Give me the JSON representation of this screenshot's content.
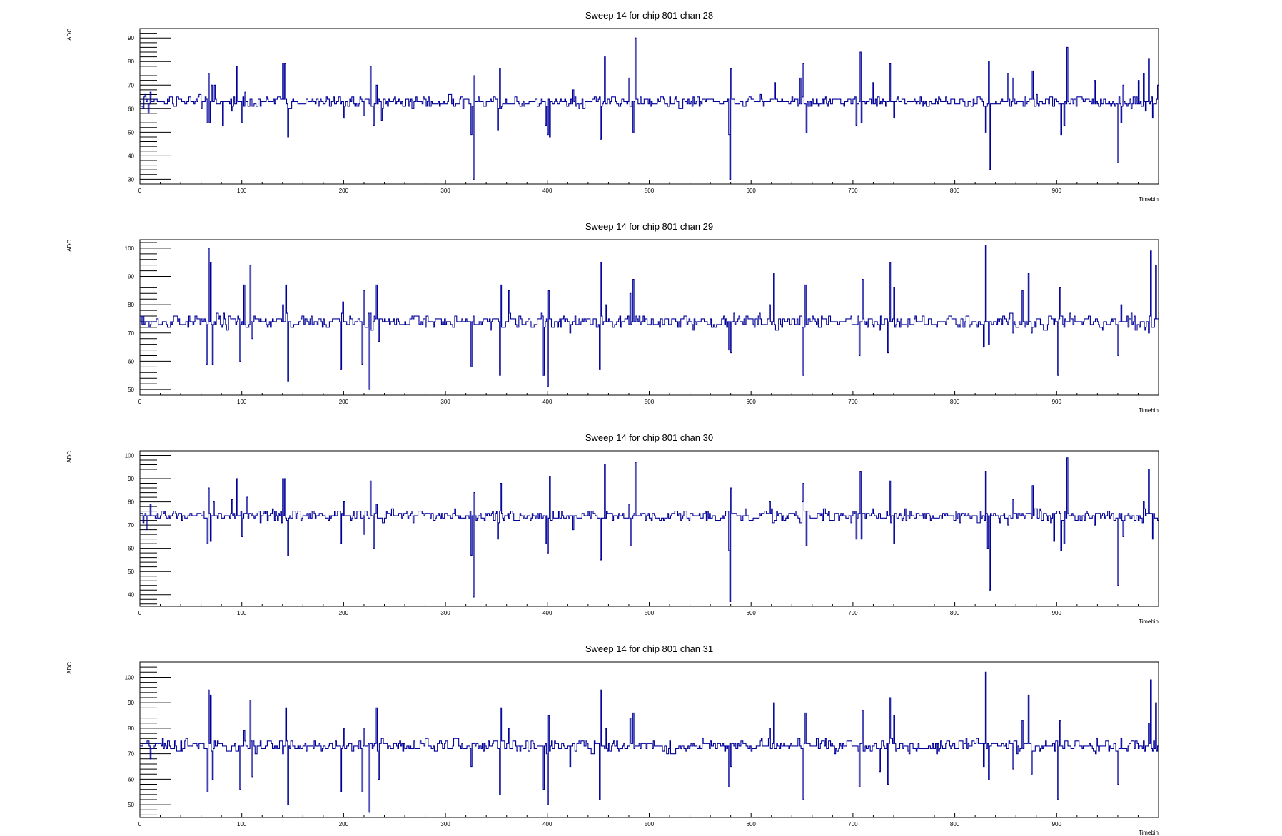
{
  "chart_data": [
    {
      "type": "line",
      "title": "Sweep 14 for chip 801 chan 28",
      "xlabel": "Timebin",
      "ylabel": "ADC",
      "xlim": [
        0,
        1000
      ],
      "ylim": [
        28,
        94
      ],
      "xticks": [
        0,
        100,
        200,
        300,
        400,
        500,
        600,
        700,
        800,
        900
      ],
      "yticks": [
        30,
        40,
        50,
        60,
        70,
        80,
        90
      ],
      "color": "#000099",
      "baseline": 63,
      "noise": 1.5,
      "spikes": [
        [
          3,
          60
        ],
        [
          5,
          66
        ],
        [
          8,
          58
        ],
        [
          10,
          67
        ],
        [
          66,
          54
        ],
        [
          67,
          75
        ],
        [
          68,
          54
        ],
        [
          70,
          70
        ],
        [
          73,
          70
        ],
        [
          81,
          53
        ],
        [
          90,
          59
        ],
        [
          95,
          78
        ],
        [
          100,
          54
        ],
        [
          103,
          67
        ],
        [
          140,
          79
        ],
        [
          142,
          79
        ],
        [
          145,
          48
        ],
        [
          197,
          62
        ],
        [
          200,
          56
        ],
        [
          220,
          57
        ],
        [
          226,
          78
        ],
        [
          229,
          53
        ],
        [
          232,
          70
        ],
        [
          237,
          55
        ],
        [
          325,
          49
        ],
        [
          327,
          30
        ],
        [
          328,
          74
        ],
        [
          351,
          51
        ],
        [
          353,
          77
        ],
        [
          398,
          53
        ],
        [
          400,
          49
        ],
        [
          402,
          48
        ],
        [
          425,
          68
        ],
        [
          452,
          47
        ],
        [
          456,
          82
        ],
        [
          480,
          73
        ],
        [
          484,
          50
        ],
        [
          486,
          90
        ],
        [
          578,
          49
        ],
        [
          579,
          30
        ],
        [
          580,
          77
        ],
        [
          623,
          71
        ],
        [
          648,
          73
        ],
        [
          651,
          79
        ],
        [
          654,
          50
        ],
        [
          703,
          53
        ],
        [
          707,
          84
        ],
        [
          708,
          54
        ],
        [
          719,
          71
        ],
        [
          736,
          79
        ],
        [
          740,
          56
        ],
        [
          830,
          50
        ],
        [
          833,
          80
        ],
        [
          834,
          34
        ],
        [
          852,
          75
        ],
        [
          857,
          73
        ],
        [
          876,
          76
        ],
        [
          897,
          61
        ],
        [
          904,
          49
        ],
        [
          907,
          53
        ],
        [
          910,
          86
        ],
        [
          937,
          72
        ],
        [
          960,
          37
        ],
        [
          963,
          54
        ],
        [
          965,
          70
        ],
        [
          980,
          72
        ],
        [
          985,
          75
        ],
        [
          987,
          59
        ],
        [
          990,
          81
        ],
        [
          994,
          56
        ],
        [
          999,
          70
        ]
      ]
    },
    {
      "type": "line",
      "title": "Sweep 14 for chip 801 chan 29",
      "xlabel": "Timebin",
      "ylabel": "ADC",
      "xlim": [
        0,
        1000
      ],
      "ylim": [
        48,
        103
      ],
      "xticks": [
        0,
        100,
        200,
        300,
        400,
        500,
        600,
        700,
        800,
        900
      ],
      "yticks": [
        50,
        60,
        70,
        80,
        90,
        100
      ],
      "color": "#000099",
      "baseline": 74,
      "noise": 1.5,
      "spikes": [
        [
          65,
          59
        ],
        [
          67,
          100
        ],
        [
          69,
          95
        ],
        [
          71,
          59
        ],
        [
          98,
          60
        ],
        [
          102,
          87
        ],
        [
          108,
          94
        ],
        [
          110,
          68
        ],
        [
          140,
          80
        ],
        [
          143,
          87
        ],
        [
          145,
          53
        ],
        [
          197,
          57
        ],
        [
          199,
          81
        ],
        [
          218,
          59
        ],
        [
          220,
          85
        ],
        [
          225,
          50
        ],
        [
          232,
          87
        ],
        [
          234,
          67
        ],
        [
          325,
          58
        ],
        [
          353,
          55
        ],
        [
          354,
          87
        ],
        [
          362,
          85
        ],
        [
          396,
          55
        ],
        [
          400,
          51
        ],
        [
          401,
          85
        ],
        [
          422,
          70
        ],
        [
          451,
          57
        ],
        [
          452,
          95
        ],
        [
          457,
          80
        ],
        [
          481,
          84
        ],
        [
          484,
          89
        ],
        [
          578,
          64
        ],
        [
          580,
          63
        ],
        [
          618,
          80
        ],
        [
          622,
          91
        ],
        [
          651,
          55
        ],
        [
          653,
          87
        ],
        [
          706,
          62
        ],
        [
          709,
          89
        ],
        [
          726,
          71
        ],
        [
          734,
          63
        ],
        [
          736,
          95
        ],
        [
          740,
          86
        ],
        [
          828,
          65
        ],
        [
          830,
          101
        ],
        [
          833,
          66
        ],
        [
          857,
          70
        ],
        [
          866,
          85
        ],
        [
          872,
          91
        ],
        [
          875,
          70
        ],
        [
          901,
          55
        ],
        [
          903,
          86
        ],
        [
          960,
          62
        ],
        [
          963,
          80
        ],
        [
          990,
          70
        ],
        [
          992,
          99
        ],
        [
          997,
          94
        ]
      ]
    },
    {
      "type": "line",
      "title": "Sweep 14 for chip 801 chan 30",
      "xlabel": "Timebin",
      "ylabel": "ADC",
      "xlim": [
        0,
        1000
      ],
      "ylim": [
        35,
        102
      ],
      "xticks": [
        0,
        100,
        200,
        300,
        400,
        500,
        600,
        700,
        800,
        900
      ],
      "yticks": [
        40,
        50,
        60,
        70,
        80,
        90,
        100
      ],
      "color": "#000099",
      "baseline": 74,
      "noise": 1.5,
      "spikes": [
        [
          3,
          71
        ],
        [
          6,
          68
        ],
        [
          10,
          79
        ],
        [
          66,
          62
        ],
        [
          67,
          86
        ],
        [
          69,
          63
        ],
        [
          72,
          80
        ],
        [
          90,
          81
        ],
        [
          95,
          90
        ],
        [
          100,
          65
        ],
        [
          105,
          82
        ],
        [
          140,
          90
        ],
        [
          142,
          90
        ],
        [
          145,
          57
        ],
        [
          197,
          62
        ],
        [
          200,
          80
        ],
        [
          220,
          66
        ],
        [
          226,
          89
        ],
        [
          229,
          60
        ],
        [
          232,
          79
        ],
        [
          325,
          57
        ],
        [
          327,
          39
        ],
        [
          328,
          84
        ],
        [
          351,
          64
        ],
        [
          354,
          88
        ],
        [
          398,
          62
        ],
        [
          400,
          58
        ],
        [
          402,
          91
        ],
        [
          425,
          68
        ],
        [
          452,
          55
        ],
        [
          456,
          96
        ],
        [
          480,
          79
        ],
        [
          482,
          61
        ],
        [
          486,
          97
        ],
        [
          578,
          59
        ],
        [
          579,
          37
        ],
        [
          580,
          86
        ],
        [
          618,
          80
        ],
        [
          650,
          80
        ],
        [
          651,
          88
        ],
        [
          654,
          61
        ],
        [
          703,
          64
        ],
        [
          707,
          93
        ],
        [
          708,
          64
        ],
        [
          719,
          77
        ],
        [
          736,
          89
        ],
        [
          740,
          62
        ],
        [
          830,
          93
        ],
        [
          832,
          60
        ],
        [
          834,
          42
        ],
        [
          852,
          70
        ],
        [
          857,
          81
        ],
        [
          876,
          87
        ],
        [
          897,
          63
        ],
        [
          904,
          59
        ],
        [
          907,
          62
        ],
        [
          910,
          99
        ],
        [
          937,
          70
        ],
        [
          960,
          44
        ],
        [
          963,
          75
        ],
        [
          965,
          65
        ],
        [
          985,
          80
        ],
        [
          990,
          94
        ],
        [
          994,
          64
        ],
        [
          999,
          72
        ]
      ]
    },
    {
      "type": "line",
      "title": "Sweep 14 for chip 801 chan 31",
      "xlabel": "Timebin",
      "ylabel": "ADC",
      "xlim": [
        0,
        1000
      ],
      "ylim": [
        45,
        106
      ],
      "xticks": [
        0,
        100,
        200,
        300,
        400,
        500,
        600,
        700,
        800,
        900
      ],
      "yticks": [
        50,
        60,
        70,
        80,
        90,
        100
      ],
      "color": "#000099",
      "baseline": 73,
      "noise": 1.5,
      "spikes": [
        [
          10,
          68
        ],
        [
          66,
          55
        ],
        [
          67,
          95
        ],
        [
          69,
          93
        ],
        [
          71,
          60
        ],
        [
          98,
          56
        ],
        [
          102,
          79
        ],
        [
          108,
          91
        ],
        [
          110,
          61
        ],
        [
          140,
          70
        ],
        [
          143,
          88
        ],
        [
          145,
          50
        ],
        [
          197,
          55
        ],
        [
          200,
          80
        ],
        [
          218,
          55
        ],
        [
          220,
          80
        ],
        [
          225,
          47
        ],
        [
          232,
          88
        ],
        [
          234,
          60
        ],
        [
          325,
          65
        ],
        [
          353,
          54
        ],
        [
          354,
          88
        ],
        [
          362,
          80
        ],
        [
          396,
          56
        ],
        [
          400,
          50
        ],
        [
          401,
          85
        ],
        [
          422,
          65
        ],
        [
          451,
          52
        ],
        [
          452,
          95
        ],
        [
          457,
          80
        ],
        [
          481,
          84
        ],
        [
          484,
          86
        ],
        [
          578,
          57
        ],
        [
          580,
          65
        ],
        [
          618,
          80
        ],
        [
          622,
          90
        ],
        [
          651,
          52
        ],
        [
          653,
          86
        ],
        [
          706,
          57
        ],
        [
          709,
          87
        ],
        [
          726,
          63
        ],
        [
          734,
          58
        ],
        [
          736,
          92
        ],
        [
          740,
          85
        ],
        [
          828,
          65
        ],
        [
          830,
          102
        ],
        [
          833,
          60
        ],
        [
          857,
          64
        ],
        [
          866,
          83
        ],
        [
          872,
          93
        ],
        [
          875,
          62
        ],
        [
          901,
          52
        ],
        [
          903,
          83
        ],
        [
          960,
          58
        ],
        [
          963,
          76
        ],
        [
          990,
          82
        ],
        [
          992,
          99
        ],
        [
          997,
          90
        ]
      ]
    }
  ]
}
